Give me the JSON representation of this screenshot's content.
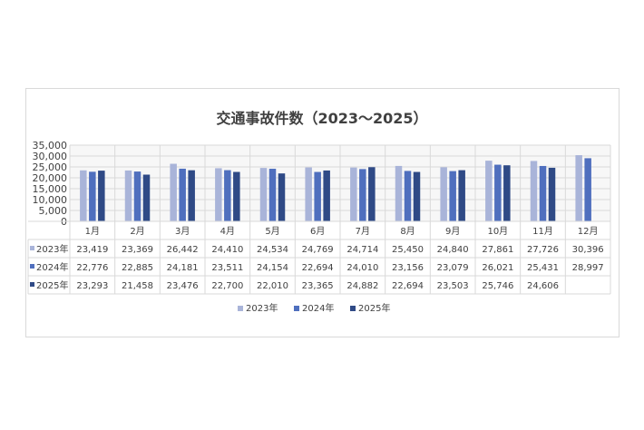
{
  "chart_data": {
    "type": "bar",
    "title": "交通事故件数（2023～2025）",
    "categories": [
      "1月",
      "2月",
      "3月",
      "4月",
      "5月",
      "6月",
      "7月",
      "8月",
      "9月",
      "10月",
      "11月",
      "12月"
    ],
    "ylim": [
      0,
      35000
    ],
    "yticks": [
      "0",
      "5,000",
      "10,000",
      "15,000",
      "20,000",
      "25,000",
      "30,000",
      "35,000"
    ],
    "ytick_values": [
      0,
      5000,
      10000,
      15000,
      20000,
      25000,
      30000,
      35000
    ],
    "grid": true,
    "legend_position": "bottom",
    "series": [
      {
        "name": "2023年",
        "color": "#a9b4d9",
        "values": [
          23419,
          23369,
          26442,
          24410,
          24534,
          24769,
          24714,
          25450,
          24840,
          27861,
          27726,
          30396
        ],
        "labels": [
          "23,419",
          "23,369",
          "26,442",
          "24,410",
          "24,534",
          "24,769",
          "24,714",
          "25,450",
          "24,840",
          "27,861",
          "27,726",
          "30,396"
        ]
      },
      {
        "name": "2024年",
        "color": "#4f6fbe",
        "values": [
          22776,
          22885,
          24181,
          23511,
          24154,
          22694,
          24010,
          23156,
          23079,
          26021,
          25431,
          28997
        ],
        "labels": [
          "22,776",
          "22,885",
          "24,181",
          "23,511",
          "24,154",
          "22,694",
          "24,010",
          "23,156",
          "23,079",
          "26,021",
          "25,431",
          "28,997"
        ]
      },
      {
        "name": "2025年",
        "color": "#2f4a86",
        "values": [
          23293,
          21458,
          23476,
          22700,
          22010,
          23365,
          24882,
          22694,
          23503,
          25746,
          24606,
          null
        ],
        "labels": [
          "23,293",
          "21,458",
          "23,476",
          "22,700",
          "22,010",
          "23,365",
          "24,882",
          "22,694",
          "23,503",
          "25,746",
          "24,606",
          ""
        ]
      }
    ]
  }
}
